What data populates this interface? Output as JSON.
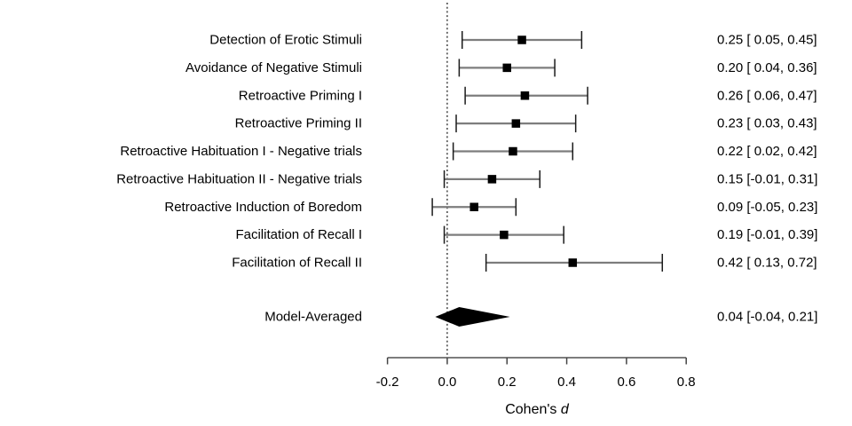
{
  "colors": {
    "background": "#ffffff",
    "text": "#000000",
    "ci_line": "#7d7d7d",
    "ci_cap": "#1a1a1a",
    "marker": "#000000",
    "diamond": "#000000",
    "axis_line": "#7d7d7d",
    "tick": "#444444",
    "zero_line": "#000000"
  },
  "chart_data": {
    "type": "forest",
    "title": "",
    "xlabel": "Cohen's d",
    "xlabel_parts": [
      {
        "text": "Cohen's ",
        "italic": false
      },
      {
        "text": "d",
        "italic": true
      }
    ],
    "xlim": [
      -0.2,
      0.8
    ],
    "x_ticks": [
      -0.2,
      0.0,
      0.2,
      0.4,
      0.6,
      0.8
    ],
    "x_tick_labels": [
      "-0.2",
      "0.0",
      "0.2",
      "0.4",
      "0.6",
      "0.8"
    ],
    "zero_reference_line": 0.0,
    "grid": false,
    "legend": "none",
    "studies": [
      {
        "label": "Detection of Erotic Stimuli",
        "estimate": 0.25,
        "ci_lower": 0.05,
        "ci_upper": 0.45,
        "display": "0.25 [ 0.05, 0.45]"
      },
      {
        "label": "Avoidance of Negative Stimuli",
        "estimate": 0.2,
        "ci_lower": 0.04,
        "ci_upper": 0.36,
        "display": "0.20 [ 0.04, 0.36]"
      },
      {
        "label": "Retroactive Priming I",
        "estimate": 0.26,
        "ci_lower": 0.06,
        "ci_upper": 0.47,
        "display": "0.26 [ 0.06, 0.47]"
      },
      {
        "label": "Retroactive Priming II",
        "estimate": 0.23,
        "ci_lower": 0.03,
        "ci_upper": 0.43,
        "display": "0.23 [ 0.03, 0.43]"
      },
      {
        "label": "Retroactive Habituation I - Negative trials",
        "estimate": 0.22,
        "ci_lower": 0.02,
        "ci_upper": 0.42,
        "display": "0.22 [ 0.02, 0.42]"
      },
      {
        "label": "Retroactive Habituation II - Negative trials",
        "estimate": 0.15,
        "ci_lower": -0.01,
        "ci_upper": 0.31,
        "display": "0.15 [-0.01, 0.31]"
      },
      {
        "label": "Retroactive Induction of Boredom",
        "estimate": 0.09,
        "ci_lower": -0.05,
        "ci_upper": 0.23,
        "display": "0.09 [-0.05, 0.23]"
      },
      {
        "label": "Facilitation of Recall I",
        "estimate": 0.19,
        "ci_lower": -0.01,
        "ci_upper": 0.39,
        "display": "0.19 [-0.01, 0.39]"
      },
      {
        "label": "Facilitation of Recall II",
        "estimate": 0.42,
        "ci_lower": 0.13,
        "ci_upper": 0.72,
        "display": "0.42 [ 0.13, 0.72]"
      }
    ],
    "model": {
      "label": "Model-Averaged",
      "estimate": 0.04,
      "ci_lower": -0.04,
      "ci_upper": 0.21,
      "display": "0.04 [-0.04, 0.21]"
    }
  }
}
